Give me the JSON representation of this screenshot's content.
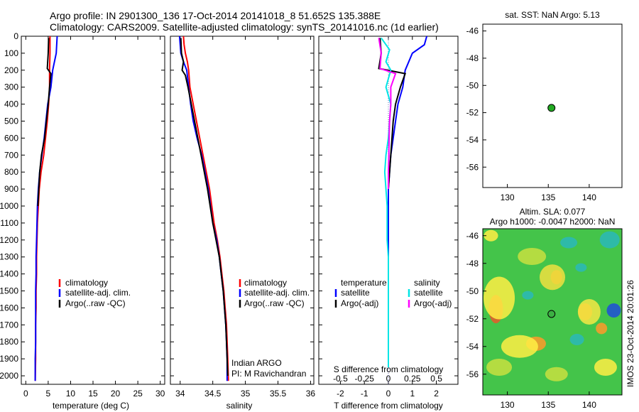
{
  "header": {
    "title_line1": "Argo profile: IN 2901300_136 17-Oct-2014 20141018_8 51.652S 135.388E",
    "title_line2": "Climatology: CARS2009. Satellite-adjusted climatology: synTS_20141016.nc (1d earlier)"
  },
  "panels": {
    "temperature": {
      "xlabel": "temperature (deg C)",
      "legend": [
        "climatology",
        "satellite-adj. clim.",
        "Argo(..raw -QC)"
      ]
    },
    "salinity": {
      "xlabel": "salinity",
      "legend": [
        "climatology",
        "satellite-adj. clim.",
        "Argo(..raw -QC)"
      ],
      "note1": "Indian ARGO",
      "note2": "PI: M Ravichandran"
    },
    "difference": {
      "xlabel": "T difference from climatology",
      "top_xlabel": "S difference from climatology",
      "legend_head_t": "temperature",
      "legend_head_s": "salinity",
      "legend_t": [
        "satellite",
        "Argo(-adj)"
      ],
      "legend_s": [
        "satellite",
        "Argo(-adj)"
      ]
    },
    "sst_map": {
      "title": "sat. SST: NaN Argo: 5.13"
    },
    "sla_map": {
      "title1": "Altim. SLA: 0.077",
      "title2": "Argo h1000: -0.0047 h2000: NaN",
      "side_label": "IMOS 23-Oct-2014 20:01:26"
    }
  },
  "colors": {
    "climatology": "#ff0000",
    "satellite": "#0000ff",
    "argo": "#000000",
    "sal_satellite": "#00e5e5",
    "sal_argo": "#ff00ff",
    "float_marker": "#22aa22"
  },
  "chart_data": [
    {
      "type": "line",
      "name": "temperature",
      "xlabel": "temperature (deg C)",
      "ylabel": "",
      "xlim": [
        -1,
        31
      ],
      "ylim": [
        2050,
        0
      ],
      "xticks": [
        0,
        5,
        10,
        15,
        20,
        25,
        30
      ],
      "yticks": [
        0,
        100,
        200,
        300,
        400,
        500,
        600,
        700,
        800,
        900,
        1000,
        1100,
        1200,
        1300,
        1400,
        1500,
        1600,
        1700,
        1800,
        1900,
        2000
      ],
      "series": [
        {
          "name": "climatology",
          "color": "#ff0000",
          "x": [
            5.4,
            5.4,
            5.3,
            5.3,
            5.1,
            4.8,
            4.4,
            4.0,
            3.4,
            3.0,
            2.8,
            2.6,
            2.5,
            2.4,
            2.4,
            2.3,
            2.3,
            2.2,
            2.2,
            2.2,
            2.1
          ],
          "y": [
            0,
            100,
            200,
            300,
            400,
            500,
            600,
            700,
            800,
            900,
            1000,
            1100,
            1200,
            1300,
            1400,
            1500,
            1600,
            1700,
            1800,
            1900,
            2030
          ]
        },
        {
          "name": "satellite-adj. clim.",
          "color": "#0000ff",
          "x": [
            7.0,
            6.8,
            6.0,
            5.6,
            4.9,
            4.5,
            4.1,
            3.6,
            3.1,
            2.8,
            2.6,
            2.5,
            2.4,
            2.3,
            2.3,
            2.2,
            2.2,
            2.2,
            2.2,
            2.1,
            2.1
          ],
          "y": [
            0,
            100,
            200,
            300,
            400,
            500,
            600,
            700,
            800,
            900,
            1000,
            1100,
            1200,
            1300,
            1400,
            1500,
            1600,
            1700,
            1800,
            1900,
            2030
          ]
        },
        {
          "name": "Argo(..raw -QC)",
          "color": "#000000",
          "x": [
            5.1,
            5.0,
            4.8,
            5.6,
            5.3,
            5.0,
            4.6,
            4.2,
            3.5,
            3.1,
            2.9,
            2.7
          ],
          "y": [
            10,
            100,
            190,
            220,
            300,
            400,
            500,
            600,
            700,
            800,
            900,
            1000
          ]
        }
      ]
    },
    {
      "type": "line",
      "name": "salinity",
      "xlabel": "salinity",
      "xlim": [
        33.85,
        36.05
      ],
      "ylim": [
        2050,
        0
      ],
      "xticks": [
        34,
        34.5,
        35,
        35.5,
        36
      ],
      "series": [
        {
          "name": "climatology",
          "color": "#ff0000",
          "x": [
            34.05,
            34.06,
            34.08,
            34.11,
            34.13,
            34.15,
            34.2,
            34.25,
            34.3,
            34.35,
            34.45,
            34.52,
            34.57,
            34.61,
            34.64,
            34.67,
            34.69,
            34.71,
            34.72,
            34.73,
            34.74
          ],
          "y": [
            0,
            50,
            100,
            150,
            200,
            300,
            400,
            500,
            600,
            700,
            900,
            1100,
            1200,
            1300,
            1400,
            1500,
            1600,
            1700,
            1800,
            1900,
            2030
          ]
        },
        {
          "name": "satellite-adj. clim.",
          "color": "#0000ff",
          "x": [
            33.99,
            34.0,
            34.01,
            34.05,
            34.1,
            34.13,
            34.16,
            34.2,
            34.26,
            34.33,
            34.43,
            34.5,
            34.56,
            34.6,
            34.63,
            34.66,
            34.68,
            34.7,
            34.71,
            34.72,
            34.72
          ],
          "y": [
            0,
            50,
            100,
            150,
            200,
            300,
            400,
            500,
            600,
            700,
            900,
            1100,
            1200,
            1300,
            1400,
            1500,
            1600,
            1700,
            1800,
            1900,
            2030
          ]
        },
        {
          "name": "Argo(..raw -QC)",
          "color": "#000000",
          "x": [
            34.01,
            34.02,
            34.05,
            34.03,
            34.08,
            34.12,
            34.17,
            34.22,
            34.27,
            34.32,
            34.42,
            34.5,
            34.55,
            34.6,
            34.63,
            34.66,
            34.68,
            34.7,
            34.71,
            34.72,
            34.73
          ],
          "y": [
            10,
            100,
            150,
            200,
            230,
            300,
            400,
            500,
            600,
            700,
            900,
            1100,
            1200,
            1300,
            1400,
            1500,
            1600,
            1700,
            1800,
            1900,
            2000
          ]
        }
      ]
    },
    {
      "type": "line",
      "name": "difference",
      "xlabel": "T difference from climatology",
      "top_xlabel": "S difference from climatology",
      "xlim": [
        -2.9,
        2.9
      ],
      "ylim": [
        2050,
        0
      ],
      "xticks": [
        -2,
        -1,
        0,
        1,
        2
      ],
      "top_xticks": [
        "-0.5",
        "-0.25",
        "0",
        "0.25",
        "0.5"
      ],
      "series": [
        {
          "name": "temperature satellite",
          "color": "#0000ff",
          "x": [
            1.6,
            1.5,
            1.0,
            0.7,
            0.6,
            0.4,
            0.3,
            0.2,
            0.1,
            0.05,
            0.0,
            0.0,
            0.0,
            0.0,
            0.0,
            0.0,
            0.0,
            0.0,
            0.0,
            0.0,
            0.0
          ],
          "y": [
            0,
            50,
            100,
            200,
            300,
            400,
            500,
            600,
            700,
            800,
            900,
            1000,
            1100,
            1200,
            1300,
            1400,
            1500,
            1600,
            1700,
            1800,
            1950
          ]
        },
        {
          "name": "temperature Argo(-adj)",
          "color": "#000000",
          "x": [
            -0.35,
            -0.3,
            -0.4,
            0.7,
            0.5,
            0.3,
            0.2,
            0.15,
            0.1,
            0.05,
            0.0
          ],
          "y": [
            10,
            100,
            190,
            220,
            300,
            400,
            500,
            600,
            700,
            800,
            900
          ]
        },
        {
          "name": "salinity satellite",
          "color": "#00e5e5",
          "x": [
            -0.3,
            0.05,
            -0.1,
            0.1,
            -0.1,
            0.1,
            0.05,
            0.0,
            -0.1,
            -0.15,
            -0.1,
            -0.05,
            -0.05,
            -0.05,
            0.0,
            0.0,
            0.0,
            0.0,
            0.0,
            0.0,
            0.0
          ],
          "y": [
            10,
            80,
            150,
            200,
            300,
            400,
            500,
            600,
            700,
            800,
            900,
            1000,
            1100,
            1200,
            1300,
            1400,
            1500,
            1600,
            1700,
            1800,
            1950
          ]
        },
        {
          "name": "salinity Argo(-adj)",
          "color": "#ff00ff",
          "x": [
            -0.4,
            -0.3,
            -0.35,
            0.3,
            0.1,
            0.1,
            0.05,
            0.03,
            0.02,
            0.0,
            0.0
          ],
          "y": [
            10,
            100,
            190,
            220,
            300,
            400,
            500,
            600,
            700,
            800,
            900
          ]
        }
      ]
    },
    {
      "type": "scatter",
      "name": "sst_map",
      "title": "sat. SST: NaN Argo: 5.13",
      "xlim": [
        127,
        144
      ],
      "ylim": [
        -57.5,
        -45.5
      ],
      "xticks": [
        130,
        135,
        140
      ],
      "yticks": [
        -46,
        -48,
        -50,
        -52,
        -54,
        -56
      ],
      "points": [
        {
          "x": 135.388,
          "y": -51.652
        }
      ]
    },
    {
      "type": "heatmap",
      "name": "sla_map",
      "title": "Altim. SLA: 0.077",
      "subtitle": "Argo h1000: -0.0047 h2000: NaN",
      "xlim": [
        127,
        144
      ],
      "ylim": [
        -57.5,
        -45.5
      ],
      "xticks": [
        130,
        135,
        140
      ],
      "yticks": [
        -46,
        -48,
        -50,
        -52,
        -54,
        -56
      ],
      "points": [
        {
          "x": 135.388,
          "y": -51.652
        }
      ]
    }
  ]
}
